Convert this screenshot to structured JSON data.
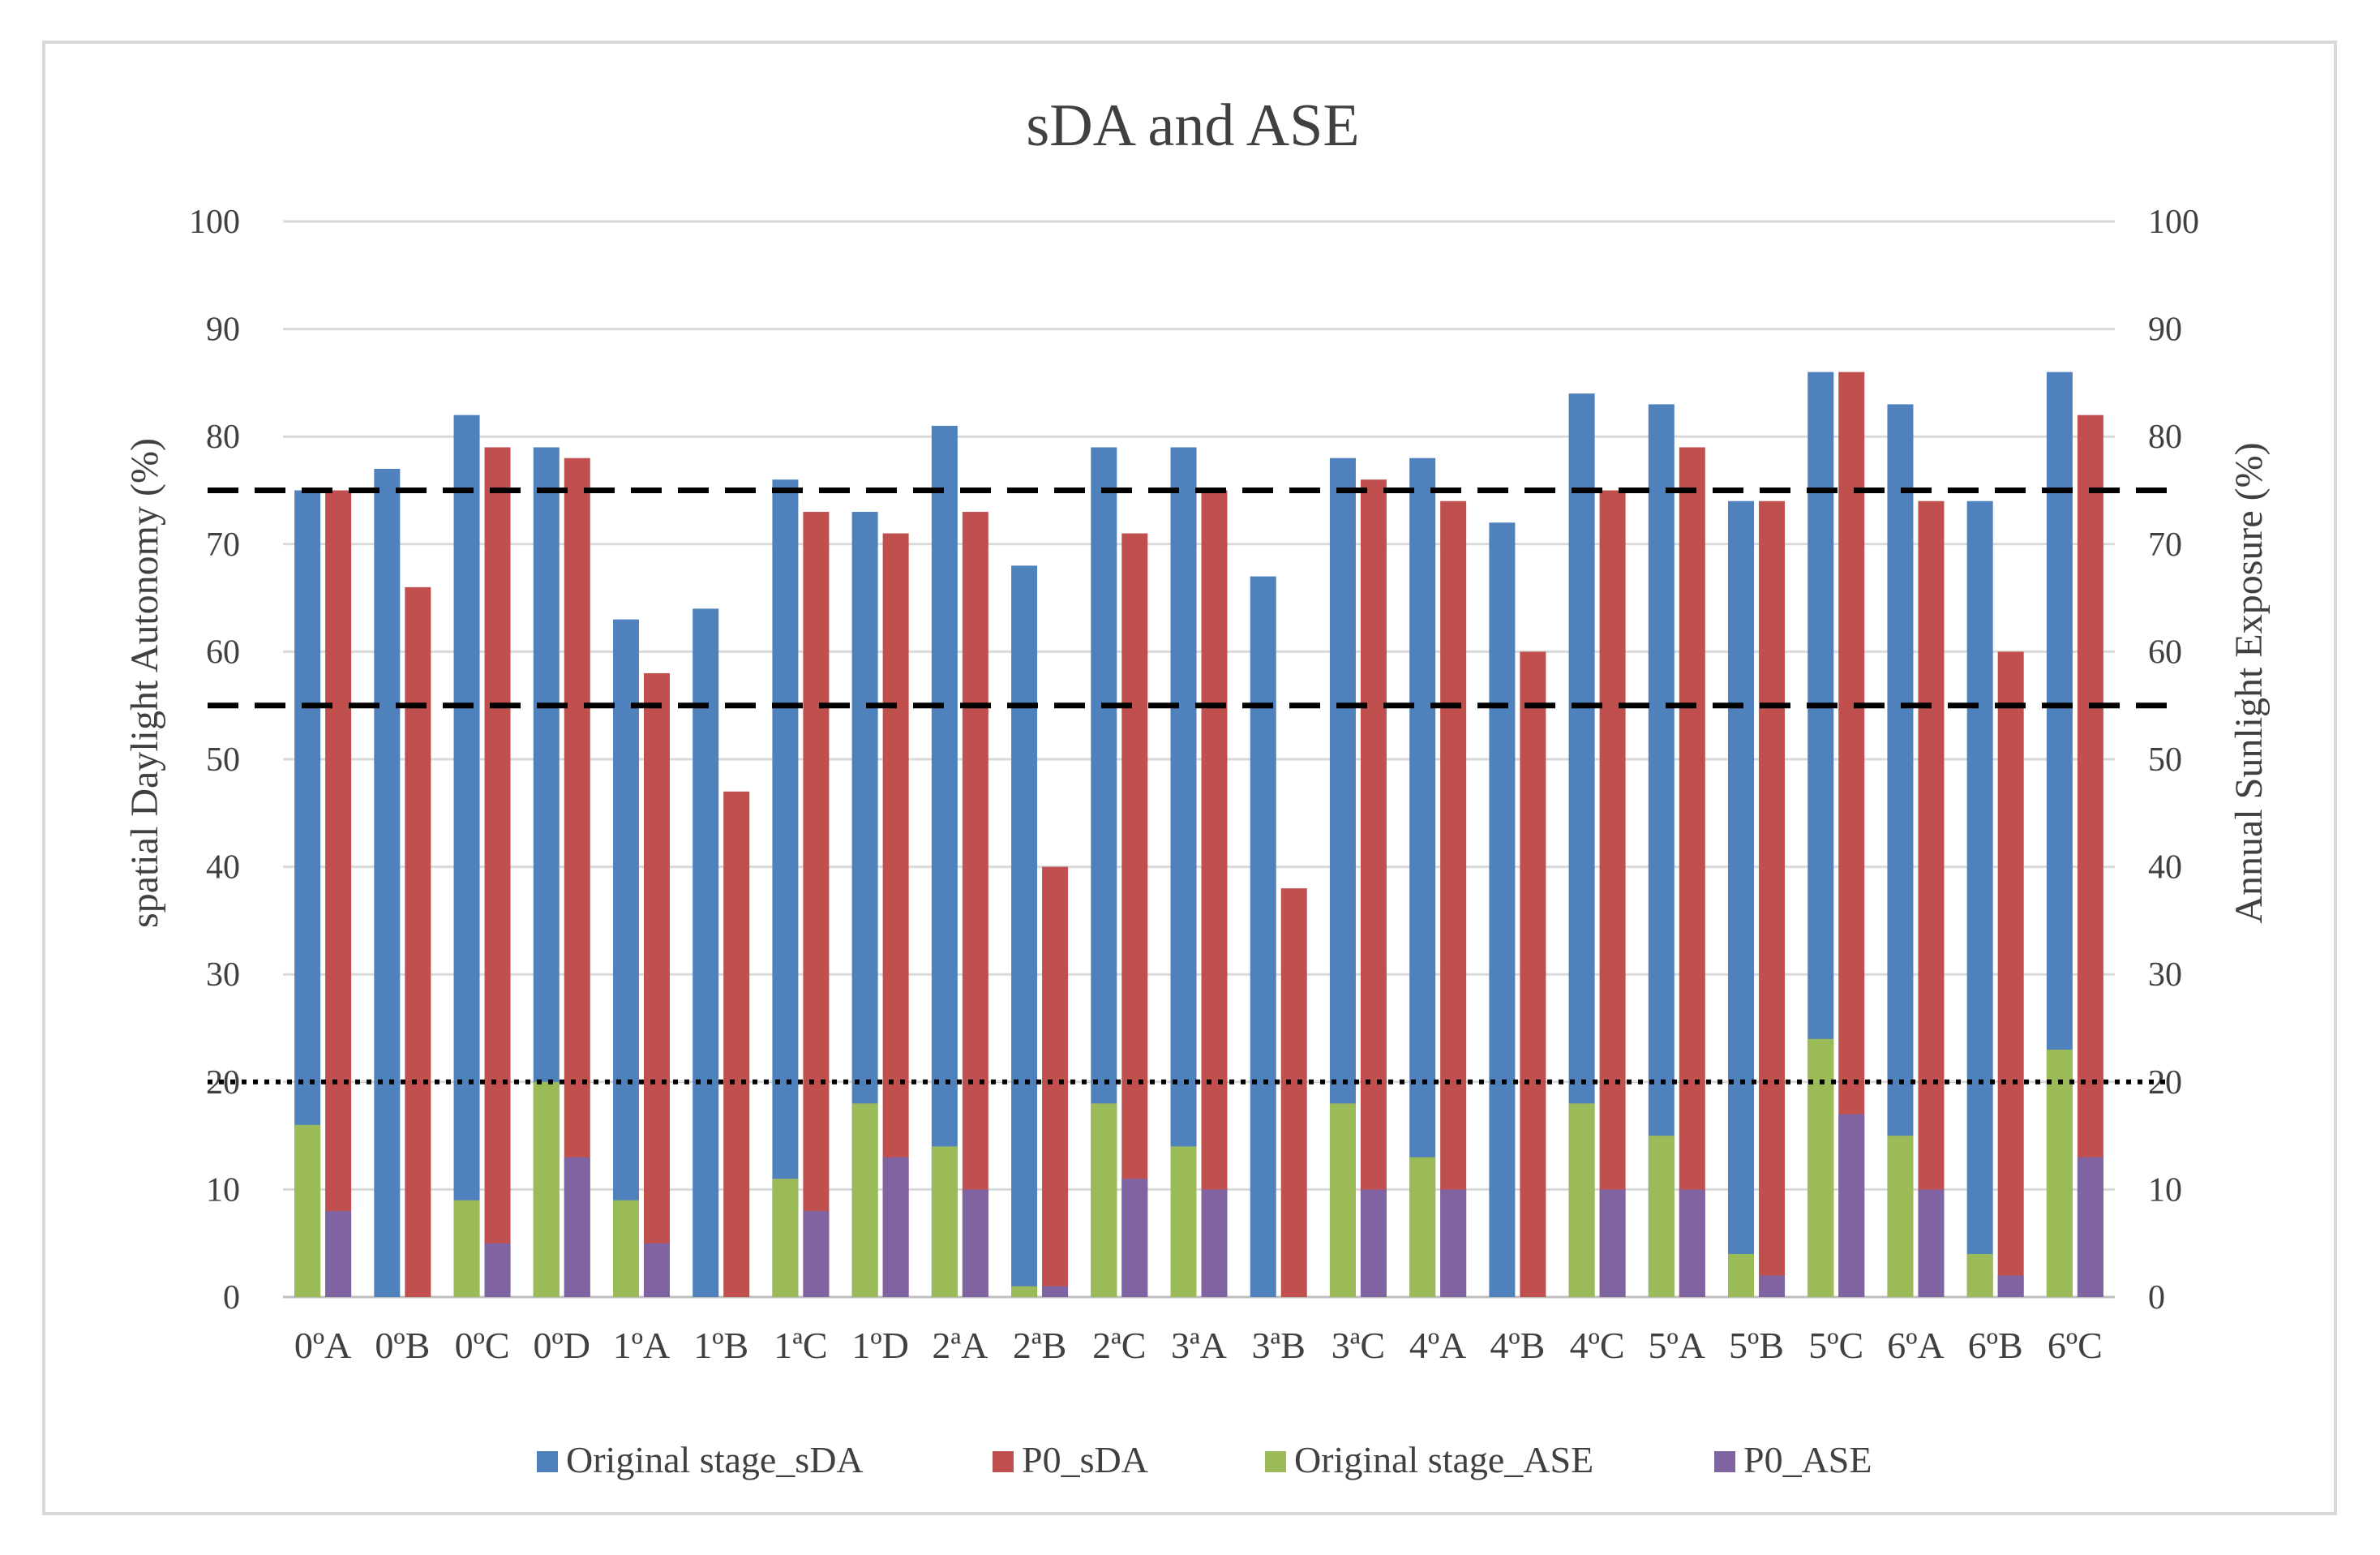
{
  "chart_data": {
    "type": "bar",
    "title": "sDA and ASE",
    "ylabel_left": "spatial Daylight Autonomy (%)",
    "ylabel_right": "Annual Sunlight Exposure (%)",
    "ylim": [
      0,
      100
    ],
    "yticks": [
      0,
      10,
      20,
      30,
      40,
      50,
      60,
      70,
      80,
      90,
      100
    ],
    "grid": true,
    "legend_position": "bottom",
    "categories": [
      "0ºA",
      "0ºB",
      "0ºC",
      "0ºD",
      "1ºA",
      "1ºB",
      "1ªC",
      "1ºD",
      "2ªA",
      "2ªB",
      "2ªC",
      "3ªA",
      "3ªB",
      "3ªC",
      "4ºA",
      "4ºB",
      "4ºC",
      "5ºA",
      "5ºB",
      "5ºC",
      "6ºA",
      "6ºB",
      "6ºC"
    ],
    "series": [
      {
        "name": "Original stage_sDA",
        "color": "#4f81bd",
        "position": "left",
        "values": [
          75,
          77,
          82,
          79,
          63,
          64,
          76,
          73,
          81,
          68,
          79,
          79,
          67,
          78,
          78,
          72,
          84,
          83,
          74,
          86,
          83,
          74,
          86
        ]
      },
      {
        "name": "P0_sDA",
        "color": "#c0504d",
        "position": "right",
        "values": [
          75,
          66,
          79,
          78,
          58,
          47,
          73,
          71,
          73,
          40,
          71,
          75,
          38,
          76,
          74,
          60,
          75,
          79,
          74,
          86,
          74,
          60,
          82
        ]
      },
      {
        "name": "Original stage_ASE",
        "color": "#9bbb59",
        "position": "left",
        "values": [
          16,
          0,
          9,
          20,
          9,
          0,
          11,
          18,
          14,
          1,
          18,
          14,
          0,
          18,
          13,
          0,
          18,
          15,
          4,
          24,
          15,
          4,
          23
        ]
      },
      {
        "name": "P0_ASE",
        "color": "#8064a2",
        "position": "right",
        "values": [
          8,
          0,
          5,
          13,
          5,
          0,
          8,
          13,
          10,
          1,
          11,
          10,
          0,
          10,
          10,
          0,
          10,
          10,
          2,
          17,
          10,
          2,
          13
        ]
      }
    ],
    "reference_lines": [
      {
        "value": 75,
        "style": "dashed"
      },
      {
        "value": 55,
        "style": "dashed"
      },
      {
        "value": 20,
        "style": "dotted"
      }
    ]
  }
}
